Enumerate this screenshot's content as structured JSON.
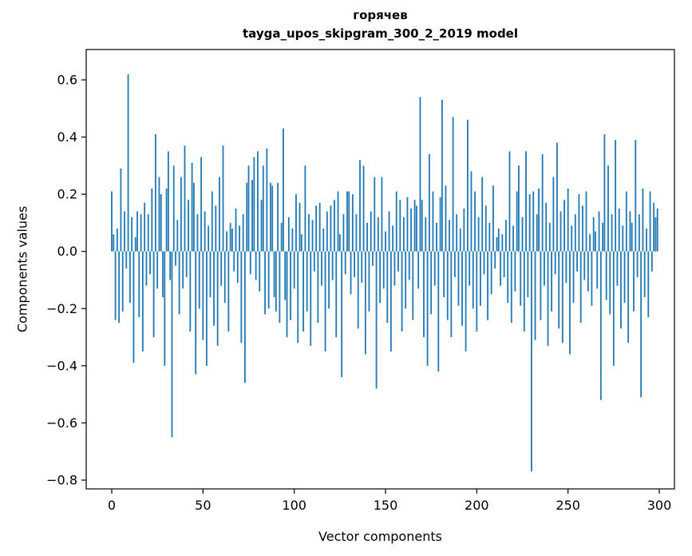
{
  "figure": {
    "title_line1": "горячев",
    "title_line2": "tayga_upos_skipgram_300_2_2019 model",
    "xlabel": "Vector components",
    "ylabel": "Components values"
  },
  "chart_data": {
    "type": "bar",
    "title": "горячев",
    "subtitle": "tayga_upos_skipgram_300_2_2019 model",
    "xlabel": "Vector components",
    "ylabel": "Components values",
    "bar_color": "#1f77b4",
    "axis_color": "#000000",
    "xlim": [
      -15,
      315
    ],
    "ylim": [
      -0.83,
      0.71
    ],
    "xticks": [
      0,
      50,
      100,
      150,
      200,
      250,
      300
    ],
    "yticks": [
      0.6,
      0.4,
      0.2,
      0.0,
      -0.2,
      -0.4,
      -0.6,
      -0.8
    ],
    "grid": false,
    "legend": null,
    "n_components": 300,
    "values": [
      0.21,
      0.06,
      -0.24,
      0.08,
      -0.25,
      0.29,
      -0.21,
      0.14,
      -0.06,
      0.62,
      -0.18,
      0.12,
      -0.39,
      0.05,
      0.14,
      -0.23,
      0.13,
      -0.35,
      0.17,
      -0.12,
      0.13,
      -0.08,
      0.22,
      -0.3,
      0.41,
      -0.13,
      0.26,
      0.2,
      -0.16,
      -0.4,
      0.22,
      0.35,
      -0.1,
      -0.65,
      0.3,
      -0.05,
      0.11,
      -0.22,
      0.26,
      -0.13,
      0.37,
      -0.09,
      0.18,
      -0.28,
      0.31,
      0.24,
      -0.43,
      0.13,
      -0.2,
      0.33,
      -0.31,
      0.14,
      -0.4,
      0.09,
      -0.16,
      0.21,
      -0.26,
      0.16,
      -0.33,
      0.26,
      -0.12,
      0.37,
      -0.18,
      0.07,
      -0.28,
      0.1,
      0.08,
      -0.07,
      0.15,
      -0.11,
      0.09,
      -0.32,
      0.13,
      -0.46,
      0.24,
      0.3,
      -0.08,
      0.25,
      0.33,
      -0.1,
      0.35,
      -0.14,
      0.18,
      0.3,
      -0.22,
      0.36,
      -0.2,
      0.24,
      0.23,
      -0.16,
      -0.21,
      0.24,
      -0.25,
      0.1,
      0.43,
      -0.17,
      -0.3,
      0.12,
      -0.24,
      0.08,
      -0.13,
      0.2,
      -0.32,
      0.17,
      0.06,
      -0.28,
      0.3,
      -0.21,
      0.13,
      -0.33,
      0.11,
      -0.07,
      0.16,
      -0.25,
      0.17,
      -0.12,
      0.08,
      -0.35,
      0.14,
      -0.2,
      0.16,
      -0.1,
      0.18,
      -0.3,
      0.21,
      0.06,
      -0.44,
      0.13,
      -0.08,
      0.21,
      0.21,
      -0.15,
      0.2,
      -0.09,
      0.13,
      -0.27,
      0.32,
      -0.11,
      0.3,
      -0.36,
      0.1,
      -0.21,
      0.14,
      -0.05,
      0.26,
      -0.48,
      0.12,
      -0.18,
      0.26,
      -0.13,
      0.07,
      -0.25,
      0.14,
      -0.35,
      0.09,
      -0.12,
      0.21,
      -0.07,
      0.18,
      -0.28,
      0.12,
      -0.2,
      0.19,
      -0.1,
      0.15,
      -0.24,
      0.18,
      0.16,
      -0.13,
      0.54,
      0.18,
      -0.3,
      0.12,
      -0.4,
      0.34,
      -0.22,
      0.21,
      -0.12,
      0.1,
      -0.42,
      0.19,
      0.53,
      -0.16,
      0.23,
      -0.24,
      0.11,
      -0.3,
      0.47,
      -0.09,
      0.13,
      -0.19,
      0.08,
      -0.26,
      0.15,
      -0.35,
      0.46,
      -0.12,
      0.28,
      -0.2,
      0.21,
      -0.28,
      0.12,
      -0.19,
      0.26,
      -0.08,
      0.16,
      -0.24,
      0.1,
      -0.15,
      0.23,
      -0.06,
      0.05,
      0.08,
      -0.12,
      0.06,
      -0.09,
      0.11,
      -0.18,
      0.35,
      -0.25,
      0.09,
      -0.14,
      0.21,
      0.3,
      -0.19,
      0.12,
      -0.28,
      0.35,
      -0.16,
      0.2,
      -0.77,
      0.21,
      -0.31,
      0.13,
      0.22,
      -0.24,
      0.34,
      -0.12,
      0.17,
      -0.33,
      0.1,
      -0.21,
      0.26,
      -0.08,
      0.38,
      -0.27,
      0.14,
      -0.32,
      0.18,
      -0.11,
      0.22,
      -0.36,
      0.09,
      -0.18,
      0.13,
      -0.07,
      0.2,
      -0.25,
      0.16,
      -0.1,
      0.21,
      -0.14,
      0.06,
      -0.19,
      0.12,
      0.07,
      -0.13,
      0.14,
      -0.52,
      0.1,
      0.41,
      -0.17,
      0.3,
      -0.22,
      0.13,
      -0.4,
      0.39,
      -0.12,
      0.15,
      -0.27,
      0.09,
      -0.18,
      0.21,
      -0.32,
      0.14,
      0.1,
      -0.21,
      0.39,
      -0.09,
      0.13,
      -0.51,
      0.22,
      -0.16,
      0.08,
      -0.23,
      0.21,
      -0.07,
      0.17,
      0.12,
      0.15
    ]
  }
}
